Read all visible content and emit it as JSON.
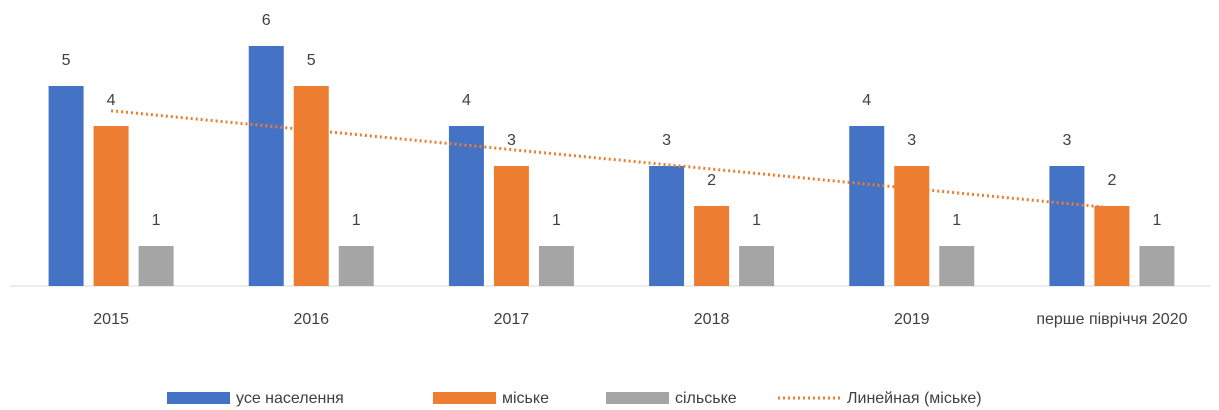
{
  "chart_data": {
    "type": "bar",
    "categories": [
      "2015",
      "2016",
      "2017",
      "2018",
      "2019",
      "перше півріччя 2020"
    ],
    "series": [
      {
        "name": "усе населення",
        "color": "#4472c4",
        "values": [
          5,
          6,
          4,
          3,
          4,
          3
        ]
      },
      {
        "name": "міське",
        "color": "#ed7d31",
        "values": [
          4,
          5,
          3,
          2,
          3,
          2
        ]
      },
      {
        "name": "сільське",
        "color": "#a5a5a5",
        "values": [
          1,
          1,
          1,
          1,
          1,
          1
        ]
      }
    ],
    "trendline": {
      "name": "Линейная (міське)",
      "series": 1,
      "color": "#ed7d31",
      "style": "dotted"
    },
    "legend": "bottom"
  }
}
